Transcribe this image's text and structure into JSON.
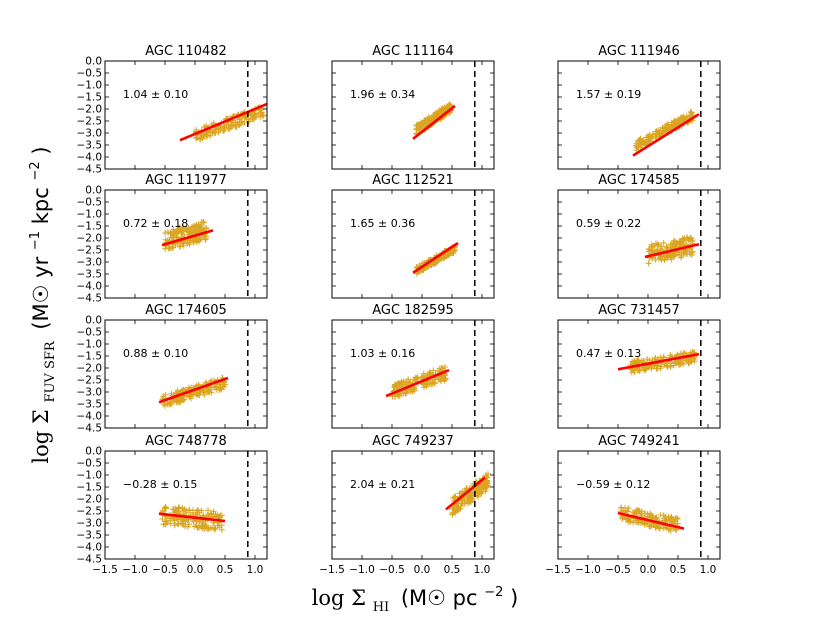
{
  "colors": {
    "points": "#DAA520",
    "fit": "#FF0000",
    "threshold": "#000000"
  },
  "chart_data": {
    "type": "scatter",
    "layout": "4x3 grid of panels",
    "xlabel": "log Σ HI (M☉ pc⁻²)",
    "ylabel": "log Σ FUV SFR (M☉ yr⁻¹ kpc⁻²)",
    "xlabel_parts": {
      "prefix": "log Σ",
      "sub": "HI",
      "unit": "(M☉ pc",
      "exp": "−2",
      "close": ")"
    },
    "ylabel_parts": {
      "prefix": "log Σ",
      "sub": "FUV SFR",
      "unit": "(M☉ yr",
      "exp1": "−1",
      "mid": " kpc",
      "exp2": "−2",
      "close": ")"
    },
    "xlim": [
      -1.5,
      1.2
    ],
    "ylim": [
      -4.5,
      0.0
    ],
    "xticks": [
      -1.5,
      -1.0,
      -0.5,
      0.0,
      0.5,
      1.0
    ],
    "xtick_labels": [
      "−1.5",
      "−1.0",
      "−0.5",
      "0.0",
      "0.5",
      "1.0"
    ],
    "yticks": [
      0.0,
      -0.5,
      -1.0,
      -1.5,
      -2.0,
      -2.5,
      -3.0,
      -3.5,
      -4.0,
      -4.5
    ],
    "ytick_labels": [
      "0.0",
      "−0.5",
      "−1.0",
      "−1.5",
      "−2.0",
      "−2.5",
      "−3.0",
      "−3.5",
      "−4.0",
      "−4.5"
    ],
    "threshold_x": 0.88,
    "panels": [
      {
        "title": "AGC 110482",
        "annotation": "1.04 ± 0.10",
        "fit": {
          "x0": -0.25,
          "x1": 1.2,
          "slope": 1.04,
          "intercept": -3.04
        },
        "cloud": {
          "xmin": 0.0,
          "xmax": 1.15,
          "yc": -2.6,
          "spread": 0.25
        }
      },
      {
        "title": "AGC 111164",
        "annotation": "1.96 ± 0.34",
        "fit": {
          "x0": -0.15,
          "x1": 0.55,
          "slope": 1.96,
          "intercept": -2.95
        },
        "cloud": {
          "xmin": -0.1,
          "xmax": 0.5,
          "yc": -2.4,
          "spread": 0.2
        }
      },
      {
        "title": "AGC 111946",
        "annotation": "1.57 ± 0.19",
        "fit": {
          "x0": -0.25,
          "x1": 0.85,
          "slope": 1.57,
          "intercept": -3.55
        },
        "cloud": {
          "xmin": -0.2,
          "xmax": 0.75,
          "yc": -2.9,
          "spread": 0.2
        }
      },
      {
        "title": "AGC 111977",
        "annotation": "0.72 ± 0.18",
        "fit": {
          "x0": -0.55,
          "x1": 0.3,
          "slope": 0.72,
          "intercept": -1.9
        },
        "cloud": {
          "xmin": -0.5,
          "xmax": 0.2,
          "yc": -1.9,
          "spread": 0.4
        }
      },
      {
        "title": "AGC 112521",
        "annotation": "1.65 ± 0.36",
        "fit": {
          "x0": -0.15,
          "x1": 0.6,
          "slope": 1.65,
          "intercept": -3.2
        },
        "cloud": {
          "xmin": -0.1,
          "xmax": 0.55,
          "yc": -2.9,
          "spread": 0.15
        }
      },
      {
        "title": "AGC 174585",
        "annotation": "0.59 ± 0.22",
        "fit": {
          "x0": -0.05,
          "x1": 0.85,
          "slope": 0.59,
          "intercept": -2.76
        },
        "cloud": {
          "xmin": 0.0,
          "xmax": 0.75,
          "yc": -2.5,
          "spread": 0.4
        }
      },
      {
        "title": "AGC 174605",
        "annotation": "0.88 ± 0.10",
        "fit": {
          "x0": -0.6,
          "x1": 0.55,
          "slope": 0.88,
          "intercept": -2.9
        },
        "cloud": {
          "xmin": -0.55,
          "xmax": 0.5,
          "yc": -3.0,
          "spread": 0.25
        }
      },
      {
        "title": "AGC 182595",
        "annotation": "1.03 ± 0.16",
        "fit": {
          "x0": -0.6,
          "x1": 0.45,
          "slope": 1.03,
          "intercept": -2.55
        },
        "cloud": {
          "xmin": -0.5,
          "xmax": 0.4,
          "yc": -2.6,
          "spread": 0.3
        }
      },
      {
        "title": "AGC 731457",
        "annotation": "0.47 ± 0.13",
        "fit": {
          "x0": -0.5,
          "x1": 0.85,
          "slope": 0.47,
          "intercept": -1.82
        },
        "cloud": {
          "xmin": -0.3,
          "xmax": 0.8,
          "yc": -1.75,
          "spread": 0.25
        }
      },
      {
        "title": "AGC 748778",
        "annotation": "−0.28 ± 0.15",
        "fit": {
          "x0": -0.6,
          "x1": 0.5,
          "slope": -0.28,
          "intercept": -2.78
        },
        "cloud": {
          "xmin": -0.55,
          "xmax": 0.45,
          "yc": -2.8,
          "spread": 0.4
        }
      },
      {
        "title": "AGC 749237",
        "annotation": "2.04 ± 0.21",
        "fit": {
          "x0": 0.4,
          "x1": 1.05,
          "slope": 2.04,
          "intercept": -3.25
        },
        "cloud": {
          "xmin": 0.5,
          "xmax": 1.1,
          "yc": -1.8,
          "spread": 0.35
        }
      },
      {
        "title": "AGC 749241",
        "annotation": "−0.59 ± 0.12",
        "fit": {
          "x0": -0.5,
          "x1": 0.6,
          "slope": -0.59,
          "intercept": -2.88
        },
        "cloud": {
          "xmin": -0.45,
          "xmax": 0.5,
          "yc": -2.85,
          "spread": 0.3
        }
      }
    ]
  }
}
